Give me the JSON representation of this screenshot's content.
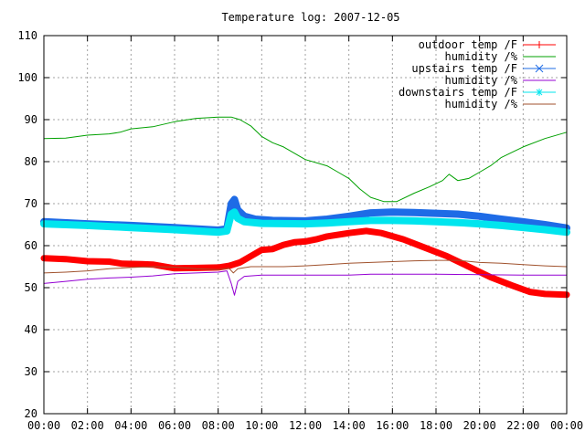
{
  "chart_data": {
    "type": "line",
    "title": "Temperature log: 2007-12-05",
    "xlabel": "",
    "ylabel": "",
    "xlim": [
      0,
      24
    ],
    "ylim": [
      20,
      110
    ],
    "x_ticks": [
      "00:00",
      "02:00",
      "04:00",
      "06:00",
      "08:00",
      "10:00",
      "12:00",
      "14:00",
      "16:00",
      "18:00",
      "20:00",
      "22:00",
      "00:00"
    ],
    "y_ticks": [
      "20",
      "30",
      "40",
      "50",
      "60",
      "70",
      "80",
      "90",
      "100",
      "110"
    ],
    "grid": true,
    "legend_position": "top-right",
    "series": [
      {
        "name": "outdoor temp /F",
        "color": "#ff0000",
        "marker": "plus",
        "points": [
          [
            0,
            57
          ],
          [
            1,
            56.8
          ],
          [
            2,
            56.3
          ],
          [
            3,
            56.2
          ],
          [
            3.6,
            55.7
          ],
          [
            4.5,
            55.6
          ],
          [
            5,
            55.5
          ],
          [
            6,
            54.6
          ],
          [
            7,
            54.7
          ],
          [
            8,
            54.8
          ],
          [
            8.5,
            55.2
          ],
          [
            9,
            56
          ],
          [
            9.5,
            57.5
          ],
          [
            10,
            59
          ],
          [
            10.5,
            59.2
          ],
          [
            11,
            60.2
          ],
          [
            11.5,
            60.8
          ],
          [
            12,
            61
          ],
          [
            12.5,
            61.5
          ],
          [
            13,
            62.2
          ],
          [
            14,
            63
          ],
          [
            14.8,
            63.5
          ],
          [
            15.5,
            63
          ],
          [
            16.5,
            61.5
          ],
          [
            17.5,
            59.5
          ],
          [
            18.5,
            57.5
          ],
          [
            19.5,
            55
          ],
          [
            20.5,
            52.5
          ],
          [
            21.5,
            50.5
          ],
          [
            22.3,
            49
          ],
          [
            23,
            48.5
          ],
          [
            24,
            48.3
          ]
        ]
      },
      {
        "name": "humidity /%",
        "color": "#00a000",
        "marker": "none",
        "points": [
          [
            0,
            85.5
          ],
          [
            1,
            85.6
          ],
          [
            2,
            86.3
          ],
          [
            3,
            86.6
          ],
          [
            3.5,
            87
          ],
          [
            4,
            87.8
          ],
          [
            5,
            88.3
          ],
          [
            6,
            89.5
          ],
          [
            7,
            90.3
          ],
          [
            8,
            90.6
          ],
          [
            8.6,
            90.6
          ],
          [
            9,
            90
          ],
          [
            9.5,
            88.5
          ],
          [
            10,
            86
          ],
          [
            10.5,
            84.5
          ],
          [
            11,
            83.5
          ],
          [
            11.5,
            82
          ],
          [
            12,
            80.5
          ],
          [
            13,
            79
          ],
          [
            13.5,
            77.5
          ],
          [
            14,
            76
          ],
          [
            14.5,
            73.5
          ],
          [
            15,
            71.5
          ],
          [
            15.6,
            70.5
          ],
          [
            16.2,
            70.5
          ],
          [
            17,
            72.5
          ],
          [
            17.7,
            74
          ],
          [
            18.3,
            75.5
          ],
          [
            18.6,
            77
          ],
          [
            19,
            75.5
          ],
          [
            19.5,
            76
          ],
          [
            20,
            77.5
          ],
          [
            20.5,
            79
          ],
          [
            21,
            81
          ],
          [
            22,
            83.5
          ],
          [
            23,
            85.5
          ],
          [
            24,
            87
          ]
        ]
      },
      {
        "name": "upstairs temp /F",
        "color": "#1e6be6",
        "marker": "x",
        "points": [
          [
            0,
            65.7
          ],
          [
            2,
            65.2
          ],
          [
            4,
            64.8
          ],
          [
            6,
            64.3
          ],
          [
            8,
            63.7
          ],
          [
            8.4,
            64
          ],
          [
            8.6,
            70
          ],
          [
            8.75,
            71
          ],
          [
            8.9,
            68.5
          ],
          [
            9.2,
            67
          ],
          [
            9.7,
            66.3
          ],
          [
            10.5,
            66
          ],
          [
            12,
            65.9
          ],
          [
            13,
            66.3
          ],
          [
            14,
            67
          ],
          [
            15,
            67.8
          ],
          [
            16,
            68
          ],
          [
            17,
            67.9
          ],
          [
            18,
            67.7
          ],
          [
            19,
            67.5
          ],
          [
            20,
            67
          ],
          [
            21,
            66.3
          ],
          [
            22,
            65.7
          ],
          [
            23,
            65
          ],
          [
            24,
            64.2
          ]
        ]
      },
      {
        "name": "humidity /%",
        "color": "#9400d3",
        "marker": "none",
        "points": [
          [
            0,
            51
          ],
          [
            1,
            51.5
          ],
          [
            2,
            52
          ],
          [
            3,
            52.3
          ],
          [
            4,
            52.5
          ],
          [
            5,
            52.8
          ],
          [
            6,
            53.3
          ],
          [
            7,
            53.5
          ],
          [
            8,
            53.7
          ],
          [
            8.4,
            54
          ],
          [
            8.6,
            51
          ],
          [
            8.75,
            48.2
          ],
          [
            8.9,
            51.5
          ],
          [
            9.2,
            52.7
          ],
          [
            10,
            53
          ],
          [
            12,
            53
          ],
          [
            14,
            53
          ],
          [
            15,
            53.2
          ],
          [
            16,
            53.2
          ],
          [
            18,
            53.2
          ],
          [
            20,
            53.1
          ],
          [
            22,
            53
          ],
          [
            24,
            53
          ]
        ]
      },
      {
        "name": "downstairs temp /F",
        "color": "#00e5ee",
        "marker": "star",
        "points": [
          [
            0,
            65.2
          ],
          [
            2,
            64.8
          ],
          [
            4,
            64.3
          ],
          [
            6,
            63.8
          ],
          [
            8,
            63.2
          ],
          [
            8.4,
            63.5
          ],
          [
            8.6,
            67.5
          ],
          [
            8.75,
            68
          ],
          [
            8.9,
            66.5
          ],
          [
            9.2,
            65.7
          ],
          [
            10,
            65.3
          ],
          [
            12,
            65.2
          ],
          [
            13,
            65.4
          ],
          [
            14,
            65.7
          ],
          [
            15,
            66
          ],
          [
            16,
            66
          ],
          [
            17,
            65.9
          ],
          [
            18,
            65.7
          ],
          [
            19,
            65.5
          ],
          [
            20,
            65.2
          ],
          [
            21,
            64.8
          ],
          [
            22,
            64.3
          ],
          [
            23,
            63.8
          ],
          [
            24,
            63.2
          ]
        ]
      },
      {
        "name": "humidity /%",
        "color": "#a0522d",
        "marker": "none",
        "points": [
          [
            0,
            53.5
          ],
          [
            1,
            53.7
          ],
          [
            2,
            54
          ],
          [
            3,
            54.5
          ],
          [
            4,
            54.8
          ],
          [
            5,
            55
          ],
          [
            6,
            54.9
          ],
          [
            7,
            54.5
          ],
          [
            8,
            54.3
          ],
          [
            8.5,
            54.6
          ],
          [
            8.7,
            53.5
          ],
          [
            8.9,
            54.5
          ],
          [
            9.5,
            55
          ],
          [
            10,
            55
          ],
          [
            11,
            55
          ],
          [
            12,
            55.2
          ],
          [
            13,
            55.5
          ],
          [
            14,
            55.8
          ],
          [
            15,
            56
          ],
          [
            16,
            56.2
          ],
          [
            17,
            56.4
          ],
          [
            18,
            56.5
          ],
          [
            19,
            56.5
          ],
          [
            20,
            56
          ],
          [
            21,
            55.8
          ],
          [
            22,
            55.5
          ],
          [
            23,
            55.2
          ],
          [
            24,
            55
          ]
        ]
      }
    ]
  }
}
